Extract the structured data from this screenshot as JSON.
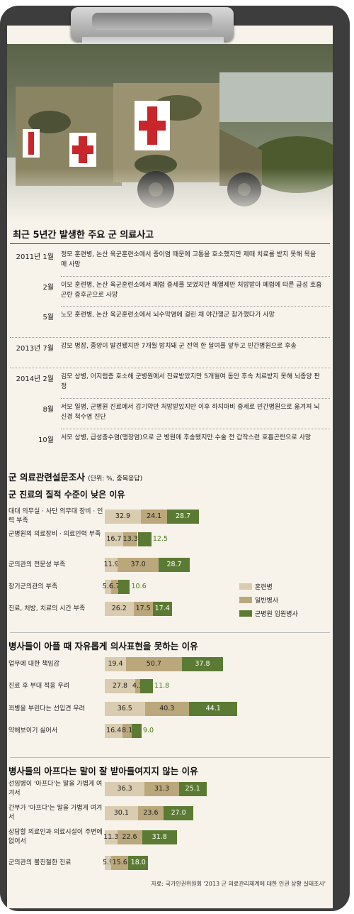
{
  "colors": {
    "trainee": "#d9ccb0",
    "general": "#bba77c",
    "inpatient": "#5b7a33",
    "paper": "#f7f3ea",
    "board": "#3d3d3d"
  },
  "incidents": {
    "title": "최근 5년간 발생한 주요 군 의료사고",
    "items": [
      {
        "date": "2011년 1월",
        "text": "정모 훈련병, 논산 육군훈련소에서 중이염 때문에 고통을 호소했지만 제때 치료를 받지 못해 목을 매 사망"
      },
      {
        "date": "2월",
        "text": "이모 훈련병, 논산 육군훈련소에서 폐렴 증세를 보였지만 해열제만 처방받아 폐렴에 따른 급성 호흡곤란 증후군으로 사망"
      },
      {
        "date": "5월",
        "text": "노모 훈련병, 논산 육군훈련소에서 뇌수막염에 걸린 채 야간행군 참가했다가 사망"
      },
      {
        "date": "2013년 7월",
        "text": "강모 병장, 종양이 발견됐지만 7개월 방치돼 군 전역 한 달여를 앞두고 민간병원으로 후송"
      },
      {
        "date": "2014년 2월",
        "text": "김모 상병, 어지럼증 호소해 군병원에서 진료받았지만 5개월여 동안 후속 치료받지 못해 뇌종양 판정"
      },
      {
        "date": "8월",
        "text": "서모 일병, 군병원 진료에서 감기약만 처방받았지만 이후 하지마비 증세로 민간병원으로 옮겨져 뇌신경 척수염 진단"
      },
      {
        "date": "10월",
        "text": "서모 상병, 급성충수염(맹장염)으로 군 병원에 후송됐지만 수술 전 갑작스런 호흡곤란으로 사망"
      }
    ]
  },
  "survey": {
    "title": "군 의료관련설문조사",
    "unit": "(단위: %, 중복응답)"
  },
  "chart_data": [
    {
      "type": "bar",
      "title": "군 진료의 질적 수준이 낮은 이유",
      "categories": [
        "대대 의무실 · 사단 의무대 장비 · 인력 부족",
        "군병원의 의료장비 · 의료인력 부족",
        "군의관의 전문성 부족",
        "장기군의관의 부족",
        "진료, 처방, 치료의 시간 부족"
      ],
      "series": [
        {
          "name": "훈련병",
          "values": [
            32.9,
            16.7,
            11.9,
            5.6,
            26.2
          ]
        },
        {
          "name": "일반병사",
          "values": [
            24.1,
            13.3,
            37.0,
            6.7,
            17.5
          ]
        },
        {
          "name": "군병원 입원병사",
          "values": [
            28.7,
            12.5,
            28.7,
            10.6,
            17.4
          ]
        }
      ]
    },
    {
      "type": "bar",
      "title": "병사들이 아플 때 자유롭게 의사표현을 못하는 이유",
      "categories": [
        "업무에 대한 책임감",
        "진료 후 부대 적응 우려",
        "꾀병을 부린다는 선입견 우려",
        "약해보이기 싫어서"
      ],
      "series": [
        {
          "name": "훈련병",
          "values": [
            19.4,
            27.8,
            36.5,
            16.4
          ]
        },
        {
          "name": "일반병사",
          "values": [
            50.7,
            4.3,
            40.3,
            8.1
          ]
        },
        {
          "name": "군병원 입원병사",
          "values": [
            37.8,
            11.8,
            44.1,
            9.0
          ]
        }
      ]
    },
    {
      "type": "bar",
      "title": "병사들의 아프다는 말이 잘 받아들여지지 않는 이유",
      "categories": [
        "선임병이 '아프다'는 말을 가볍게 여겨서",
        "간부가 '아프다'는 말을 가볍게 여겨서",
        "상담할 의료인과 의료시설이 주변에 없어서",
        "군의관의 불친절한 진료"
      ],
      "series": [
        {
          "name": "훈련병",
          "values": [
            36.3,
            30.1,
            11.3,
            5.9
          ]
        },
        {
          "name": "일반병사",
          "values": [
            31.3,
            23.6,
            22.6,
            15.6
          ]
        },
        {
          "name": "군병원 입원병사",
          "values": [
            25.1,
            27.0,
            31.8,
            18.0
          ]
        }
      ]
    }
  ],
  "source": "자료: 국가인권위원회 '2013 군 의료관리체계에 대한 인권 상황 실태조사'"
}
